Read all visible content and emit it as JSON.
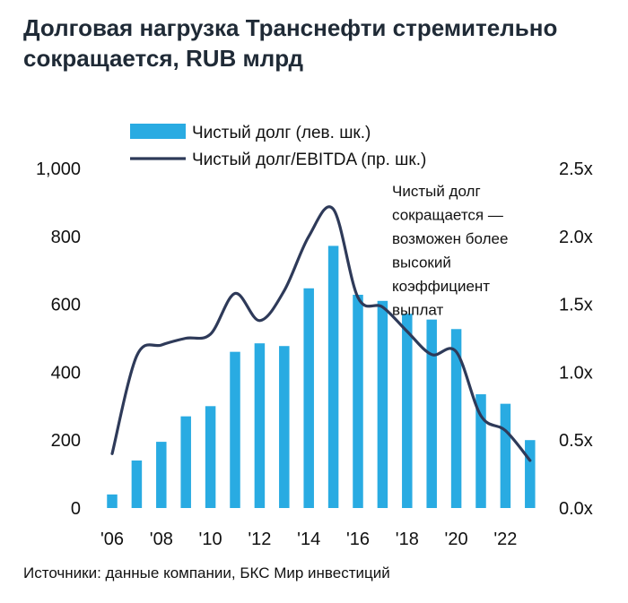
{
  "title": "Долговая нагрузка Транснефти стремительно сокращается, RUB млрд",
  "source": "Источники: данные компании, БКС Мир инвестиций",
  "colors": {
    "bar": "#29ABE2",
    "line": "#2E3A59"
  },
  "chart_data": {
    "type": "bar+line",
    "legend": "top",
    "grid": false,
    "x": [
      2006,
      2007,
      2008,
      2009,
      2010,
      2011,
      2012,
      2013,
      2014,
      2015,
      2016,
      2017,
      2018,
      2019,
      2020,
      2021,
      2022,
      2023
    ],
    "x_tick_labels": [
      "'06",
      "'08",
      "'10",
      "'12",
      "'14",
      "'16",
      "'18",
      "'20",
      "'22"
    ],
    "x_tick_values": [
      2006,
      2008,
      2010,
      2012,
      2014,
      2016,
      2018,
      2020,
      2022
    ],
    "y_left": {
      "ylim": [
        0,
        1000
      ],
      "ticks": [
        0,
        200,
        400,
        600,
        800,
        1000
      ],
      "tick_labels": [
        "0",
        "200",
        "400",
        "600",
        "800",
        "1,000"
      ]
    },
    "y_right": {
      "ylim": [
        0,
        2.5
      ],
      "ticks": [
        0,
        0.5,
        1.0,
        1.5,
        2.0,
        2.5
      ],
      "tick_labels": [
        "0.0x",
        "0.5x",
        "1.0x",
        "1.5x",
        "2.0x",
        "2.5x"
      ]
    },
    "series": [
      {
        "name": "Чистый долг (лев. шк.)",
        "type": "bar",
        "axis": "left",
        "values": [
          40,
          140,
          195,
          270,
          300,
          460,
          485,
          477,
          647,
          772,
          628,
          610,
          572,
          555,
          527,
          335,
          307,
          200
        ]
      },
      {
        "name": "Чистый долг/EBITDA (пр. шк.)",
        "type": "line",
        "axis": "right",
        "values": [
          0.4,
          1.12,
          1.2,
          1.25,
          1.28,
          1.58,
          1.38,
          1.6,
          2.0,
          2.2,
          1.55,
          1.48,
          1.3,
          1.13,
          1.15,
          0.68,
          0.57,
          0.35
        ]
      }
    ],
    "annotation": [
      "Чистый долг",
      "сокращается —",
      "возможен более",
      "высокий",
      "коэффициент",
      "выплат"
    ]
  }
}
